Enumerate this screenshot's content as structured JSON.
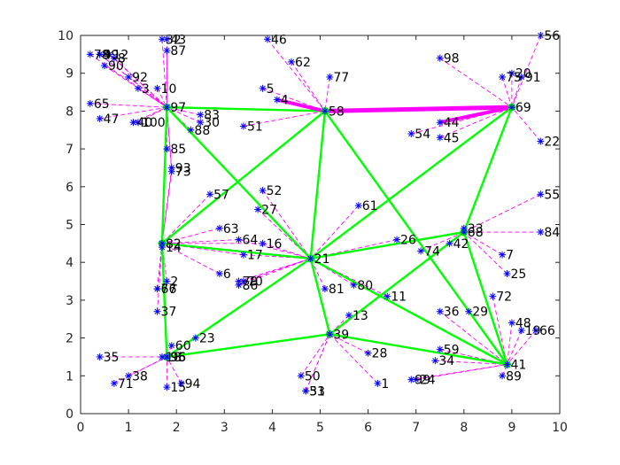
{
  "chart_data": {
    "type": "scatter",
    "title": "",
    "xlabel": "",
    "ylabel": "",
    "xlim": [
      0,
      10
    ],
    "ylim": [
      0,
      10
    ],
    "x_ticks": [
      0,
      1,
      2,
      3,
      4,
      5,
      6,
      7,
      8,
      9,
      10
    ],
    "y_ticks": [
      0,
      1,
      2,
      3,
      4,
      5,
      6,
      7,
      8,
      9,
      10
    ],
    "grid": false,
    "colors": {
      "nodes": "#0000ff",
      "tree_edges": "#00ff00",
      "spokes": "#ff00ff",
      "axes": "#262626"
    },
    "nodes": [
      {
        "id": "1",
        "x": 6.2,
        "y": 0.8
      },
      {
        "id": "2",
        "x": 1.8,
        "y": 3.5
      },
      {
        "id": "3",
        "x": 1.2,
        "y": 8.6
      },
      {
        "id": "4",
        "x": 4.1,
        "y": 8.3
      },
      {
        "id": "5",
        "x": 3.8,
        "y": 8.6
      },
      {
        "id": "6",
        "x": 2.9,
        "y": 3.7
      },
      {
        "id": "7",
        "x": 8.8,
        "y": 4.2
      },
      {
        "id": "8",
        "x": 0.7,
        "y": 9.4
      },
      {
        "id": "9",
        "x": 0.4,
        "y": 9.5
      },
      {
        "id": "10",
        "x": 1.6,
        "y": 8.6
      },
      {
        "id": "11",
        "x": 6.4,
        "y": 3.1
      },
      {
        "id": "12",
        "x": 0.6,
        "y": 9.5
      },
      {
        "id": "13",
        "x": 5.6,
        "y": 2.6
      },
      {
        "id": "14",
        "x": 1.7,
        "y": 4.4
      },
      {
        "id": "15",
        "x": 1.8,
        "y": 0.7
      },
      {
        "id": "16",
        "x": 3.8,
        "y": 4.5
      },
      {
        "id": "17",
        "x": 3.4,
        "y": 4.2
      },
      {
        "id": "18",
        "x": 1.7,
        "y": 1.5
      },
      {
        "id": "19",
        "x": 9.2,
        "y": 2.2
      },
      {
        "id": "20",
        "x": 9.0,
        "y": 9.0
      },
      {
        "id": "21",
        "x": 4.8,
        "y": 4.1
      },
      {
        "id": "22",
        "x": 9.6,
        "y": 7.2
      },
      {
        "id": "23",
        "x": 2.4,
        "y": 2.0
      },
      {
        "id": "24",
        "x": 7.0,
        "y": 0.9
      },
      {
        "id": "25",
        "x": 8.9,
        "y": 3.7
      },
      {
        "id": "26",
        "x": 6.6,
        "y": 4.6
      },
      {
        "id": "27",
        "x": 3.7,
        "y": 5.4
      },
      {
        "id": "28",
        "x": 6.0,
        "y": 1.6
      },
      {
        "id": "29",
        "x": 8.1,
        "y": 2.7
      },
      {
        "id": "30",
        "x": 2.5,
        "y": 7.7
      },
      {
        "id": "31",
        "x": 4.7,
        "y": 0.6
      },
      {
        "id": "32",
        "x": 1.7,
        "y": 9.9
      },
      {
        "id": "33",
        "x": 8.0,
        "y": 4.9
      },
      {
        "id": "34",
        "x": 7.4,
        "y": 1.4
      },
      {
        "id": "35",
        "x": 0.4,
        "y": 1.5
      },
      {
        "id": "36",
        "x": 7.5,
        "y": 2.7
      },
      {
        "id": "37",
        "x": 1.6,
        "y": 2.7
      },
      {
        "id": "38",
        "x": 1.0,
        "y": 1.0
      },
      {
        "id": "39",
        "x": 5.2,
        "y": 2.1
      },
      {
        "id": "40",
        "x": 1.1,
        "y": 7.7
      },
      {
        "id": "41",
        "x": 8.9,
        "y": 1.3
      },
      {
        "id": "42",
        "x": 7.7,
        "y": 4.5
      },
      {
        "id": "43",
        "x": 1.8,
        "y": 9.9
      },
      {
        "id": "44",
        "x": 7.5,
        "y": 7.7
      },
      {
        "id": "45",
        "x": 7.5,
        "y": 7.3
      },
      {
        "id": "46",
        "x": 3.9,
        "y": 9.9
      },
      {
        "id": "47",
        "x": 0.4,
        "y": 7.8
      },
      {
        "id": "48",
        "x": 9.0,
        "y": 2.4
      },
      {
        "id": "49",
        "x": 0.4,
        "y": 9.5
      },
      {
        "id": "50",
        "x": 4.6,
        "y": 1.0
      },
      {
        "id": "51",
        "x": 3.4,
        "y": 7.6
      },
      {
        "id": "52",
        "x": 3.8,
        "y": 5.9
      },
      {
        "id": "53",
        "x": 4.7,
        "y": 0.6
      },
      {
        "id": "54",
        "x": 6.9,
        "y": 7.4
      },
      {
        "id": "55",
        "x": 9.6,
        "y": 5.8
      },
      {
        "id": "56",
        "x": 9.6,
        "y": 10.0
      },
      {
        "id": "57",
        "x": 2.7,
        "y": 5.8
      },
      {
        "id": "58",
        "x": 5.1,
        "y": 8.0
      },
      {
        "id": "59",
        "x": 7.5,
        "y": 1.7
      },
      {
        "id": "60",
        "x": 1.9,
        "y": 1.8
      },
      {
        "id": "61",
        "x": 5.8,
        "y": 5.5
      },
      {
        "id": "62",
        "x": 4.4,
        "y": 9.3
      },
      {
        "id": "63",
        "x": 2.9,
        "y": 4.9
      },
      {
        "id": "64",
        "x": 3.3,
        "y": 4.6
      },
      {
        "id": "65",
        "x": 0.2,
        "y": 8.2
      },
      {
        "id": "66",
        "x": 9.5,
        "y": 2.2
      },
      {
        "id": "67",
        "x": 1.6,
        "y": 3.3
      },
      {
        "id": "68",
        "x": 8.0,
        "y": 4.8
      },
      {
        "id": "69",
        "x": 9.0,
        "y": 8.1
      },
      {
        "id": "70",
        "x": 3.4,
        "y": 3.5
      },
      {
        "id": "71",
        "x": 0.7,
        "y": 0.8
      },
      {
        "id": "72",
        "x": 8.6,
        "y": 3.1
      },
      {
        "id": "73",
        "x": 1.9,
        "y": 6.4
      },
      {
        "id": "74",
        "x": 7.1,
        "y": 4.3
      },
      {
        "id": "75",
        "x": 8.8,
        "y": 8.9
      },
      {
        "id": "76",
        "x": 1.6,
        "y": 3.3
      },
      {
        "id": "77",
        "x": 5.2,
        "y": 8.9
      },
      {
        "id": "78",
        "x": 0.2,
        "y": 9.5
      },
      {
        "id": "79",
        "x": 3.3,
        "y": 3.5
      },
      {
        "id": "80",
        "x": 5.7,
        "y": 3.4
      },
      {
        "id": "81",
        "x": 5.1,
        "y": 3.3
      },
      {
        "id": "82",
        "x": 1.7,
        "y": 4.5
      },
      {
        "id": "83",
        "x": 2.5,
        "y": 7.9
      },
      {
        "id": "84",
        "x": 9.6,
        "y": 4.8
      },
      {
        "id": "85",
        "x": 1.8,
        "y": 7.0
      },
      {
        "id": "86",
        "x": 3.3,
        "y": 3.4
      },
      {
        "id": "87",
        "x": 1.8,
        "y": 9.6
      },
      {
        "id": "88",
        "x": 2.3,
        "y": 7.5
      },
      {
        "id": "89",
        "x": 8.8,
        "y": 1.0
      },
      {
        "id": "90",
        "x": 0.5,
        "y": 9.2
      },
      {
        "id": "91",
        "x": 9.2,
        "y": 8.9
      },
      {
        "id": "92",
        "x": 1.0,
        "y": 8.9
      },
      {
        "id": "93",
        "x": 1.9,
        "y": 6.5
      },
      {
        "id": "94",
        "x": 2.1,
        "y": 0.8
      },
      {
        "id": "95",
        "x": 1.8,
        "y": 1.5
      },
      {
        "id": "96",
        "x": 1.8,
        "y": 1.5
      },
      {
        "id": "97",
        "x": 1.8,
        "y": 8.1
      },
      {
        "id": "98",
        "x": 7.5,
        "y": 9.4
      },
      {
        "id": "99",
        "x": 6.9,
        "y": 0.9
      },
      {
        "id": "100",
        "x": 1.2,
        "y": 7.7
      }
    ],
    "heads": [
      {
        "id": "82",
        "x": 1.7,
        "y": 4.5
      },
      {
        "id": "97",
        "x": 1.8,
        "y": 8.1
      },
      {
        "id": "58",
        "x": 5.1,
        "y": 8.0
      },
      {
        "id": "69",
        "x": 9.0,
        "y": 8.1
      },
      {
        "id": "68",
        "x": 8.0,
        "y": 4.8
      },
      {
        "id": "21",
        "x": 4.8,
        "y": 4.1
      },
      {
        "id": "39",
        "x": 5.2,
        "y": 2.1
      },
      {
        "id": "41",
        "x": 8.9,
        "y": 1.3
      },
      {
        "id": "96",
        "x": 1.8,
        "y": 1.5
      }
    ],
    "tree_edges": [
      [
        "82",
        "97"
      ],
      [
        "82",
        "58"
      ],
      [
        "82",
        "21"
      ],
      [
        "82",
        "96"
      ],
      [
        "97",
        "58"
      ],
      [
        "97",
        "21"
      ],
      [
        "58",
        "69"
      ],
      [
        "58",
        "21"
      ],
      [
        "58",
        "41"
      ],
      [
        "69",
        "68"
      ],
      [
        "69",
        "21"
      ],
      [
        "68",
        "21"
      ],
      [
        "68",
        "39"
      ],
      [
        "68",
        "41"
      ],
      [
        "21",
        "39"
      ],
      [
        "21",
        "41"
      ],
      [
        "21",
        "96"
      ],
      [
        "39",
        "41"
      ],
      [
        "39",
        "96"
      ]
    ],
    "thick_edges": [
      [
        "58",
        "69"
      ]
    ],
    "spokes": [
      [
        "92",
        "97"
      ],
      [
        "3",
        "97"
      ],
      [
        "10",
        "97"
      ],
      [
        "32",
        "97"
      ],
      [
        "43",
        "97"
      ],
      [
        "87",
        "97"
      ],
      [
        "90",
        "97"
      ],
      [
        "8",
        "97"
      ],
      [
        "12",
        "97"
      ],
      [
        "49",
        "97"
      ],
      [
        "9",
        "97"
      ],
      [
        "78",
        "97"
      ],
      [
        "65",
        "97"
      ],
      [
        "47",
        "97"
      ],
      [
        "40",
        "97"
      ],
      [
        "100",
        "97"
      ],
      [
        "83",
        "97"
      ],
      [
        "30",
        "97"
      ],
      [
        "88",
        "97"
      ],
      [
        "85",
        "97"
      ],
      [
        "73",
        "97"
      ],
      [
        "93",
        "97"
      ],
      [
        "57",
        "82"
      ],
      [
        "63",
        "82"
      ],
      [
        "64",
        "82"
      ],
      [
        "16",
        "82"
      ],
      [
        "17",
        "82"
      ],
      [
        "6",
        "82"
      ],
      [
        "2",
        "82"
      ],
      [
        "67",
        "82"
      ],
      [
        "76",
        "82"
      ],
      [
        "14",
        "82"
      ],
      [
        "37",
        "82"
      ],
      [
        "73",
        "82"
      ],
      [
        "93",
        "82"
      ],
      [
        "35",
        "96"
      ],
      [
        "38",
        "96"
      ],
      [
        "71",
        "96"
      ],
      [
        "15",
        "96"
      ],
      [
        "94",
        "96"
      ],
      [
        "60",
        "96"
      ],
      [
        "18",
        "96"
      ],
      [
        "95",
        "96"
      ],
      [
        "23",
        "96"
      ],
      [
        "46",
        "58"
      ],
      [
        "62",
        "58"
      ],
      [
        "5",
        "58"
      ],
      [
        "4",
        "58"
      ],
      [
        "77",
        "58"
      ],
      [
        "51",
        "58"
      ],
      [
        "98",
        "69"
      ],
      [
        "75",
        "69"
      ],
      [
        "20",
        "69"
      ],
      [
        "91",
        "69"
      ],
      [
        "56",
        "69"
      ],
      [
        "22",
        "69"
      ],
      [
        "44",
        "69"
      ],
      [
        "45",
        "69"
      ],
      [
        "54",
        "69"
      ],
      [
        "84",
        "68"
      ],
      [
        "55",
        "68"
      ],
      [
        "7",
        "68"
      ],
      [
        "25",
        "68"
      ],
      [
        "33",
        "68"
      ],
      [
        "42",
        "68"
      ],
      [
        "74",
        "68"
      ],
      [
        "61",
        "21"
      ],
      [
        "27",
        "21"
      ],
      [
        "52",
        "21"
      ],
      [
        "26",
        "21"
      ],
      [
        "81",
        "21"
      ],
      [
        "80",
        "21"
      ],
      [
        "70",
        "21"
      ],
      [
        "79",
        "21"
      ],
      [
        "86",
        "21"
      ],
      [
        "11",
        "21"
      ],
      [
        "16",
        "21"
      ],
      [
        "17",
        "21"
      ],
      [
        "64",
        "21"
      ],
      [
        "13",
        "39"
      ],
      [
        "28",
        "39"
      ],
      [
        "1",
        "39"
      ],
      [
        "50",
        "39"
      ],
      [
        "31",
        "39"
      ],
      [
        "53",
        "39"
      ],
      [
        "48",
        "41"
      ],
      [
        "19",
        "41"
      ],
      [
        "66",
        "41"
      ],
      [
        "89",
        "41"
      ],
      [
        "99",
        "41"
      ],
      [
        "24",
        "41"
      ],
      [
        "34",
        "41"
      ],
      [
        "59",
        "41"
      ],
      [
        "36",
        "41"
      ],
      [
        "29",
        "41"
      ],
      [
        "72",
        "41"
      ]
    ]
  }
}
